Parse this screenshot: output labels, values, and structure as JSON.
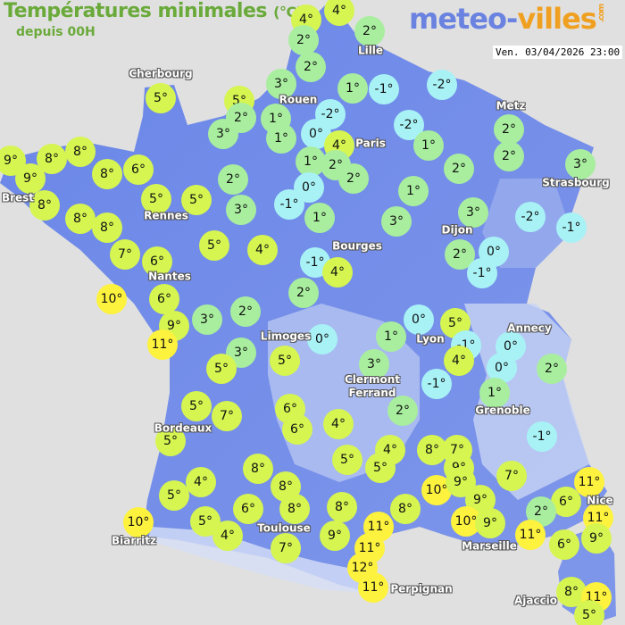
{
  "header": {
    "title": "Températures minimales",
    "title_unit": "(°C)",
    "subtitle": "depuis 00H",
    "logo_main": "meteo-",
    "logo_accent": "villes",
    "logo_suffix": ".com",
    "timestamp": "Ven. 03/04/2026 23:00"
  },
  "colors": {
    "land": "#6f8be8",
    "sea": "#e0e0e0",
    "cold": "#a8f2f6",
    "cool": "#a8ee9e",
    "mild": "#d6f550",
    "warm": "#fdf23e"
  },
  "cities": [
    "Cherbourg",
    "Lille",
    "Rouen",
    "Metz",
    "Paris",
    "Brest",
    "Rennes",
    "Strasbourg",
    "Dijon",
    "Bourges",
    "Nantes",
    "Limoges",
    "Lyon",
    "Annecy",
    "Clermont\nFerrand",
    "Grenoble",
    "Bordeaux",
    "Toulouse",
    "Biarritz",
    "Perpignan",
    "Marseille",
    "Nice",
    "Ajaccio"
  ],
  "temperatures": [
    4,
    4,
    2,
    2,
    2,
    3,
    1,
    -1,
    -2,
    5,
    5,
    2,
    1,
    -2,
    -2,
    2,
    3,
    1,
    0,
    4,
    1,
    2,
    3,
    9,
    8,
    8,
    9,
    8,
    6,
    1,
    2,
    2,
    2,
    2,
    0,
    1,
    5,
    5,
    3,
    -1,
    1,
    3,
    3,
    -2,
    -1,
    8,
    8,
    8,
    7,
    6,
    5,
    4,
    -1,
    4,
    2,
    0,
    -1,
    10,
    6,
    9,
    11,
    3,
    2,
    2,
    0,
    5,
    -1,
    0,
    0,
    2,
    1,
    3,
    5,
    5,
    0,
    3,
    4,
    -1,
    1,
    2,
    5,
    7,
    6,
    6,
    4,
    -1,
    5,
    4,
    8,
    7,
    9,
    5,
    5,
    8,
    7,
    4,
    8,
    10,
    9,
    11,
    6,
    9,
    10,
    2,
    5,
    6,
    8,
    8,
    8,
    11,
    9,
    11,
    10,
    5,
    11,
    9,
    4,
    7,
    6,
    9,
    11,
    12,
    11,
    8,
    11,
    5
  ]
}
